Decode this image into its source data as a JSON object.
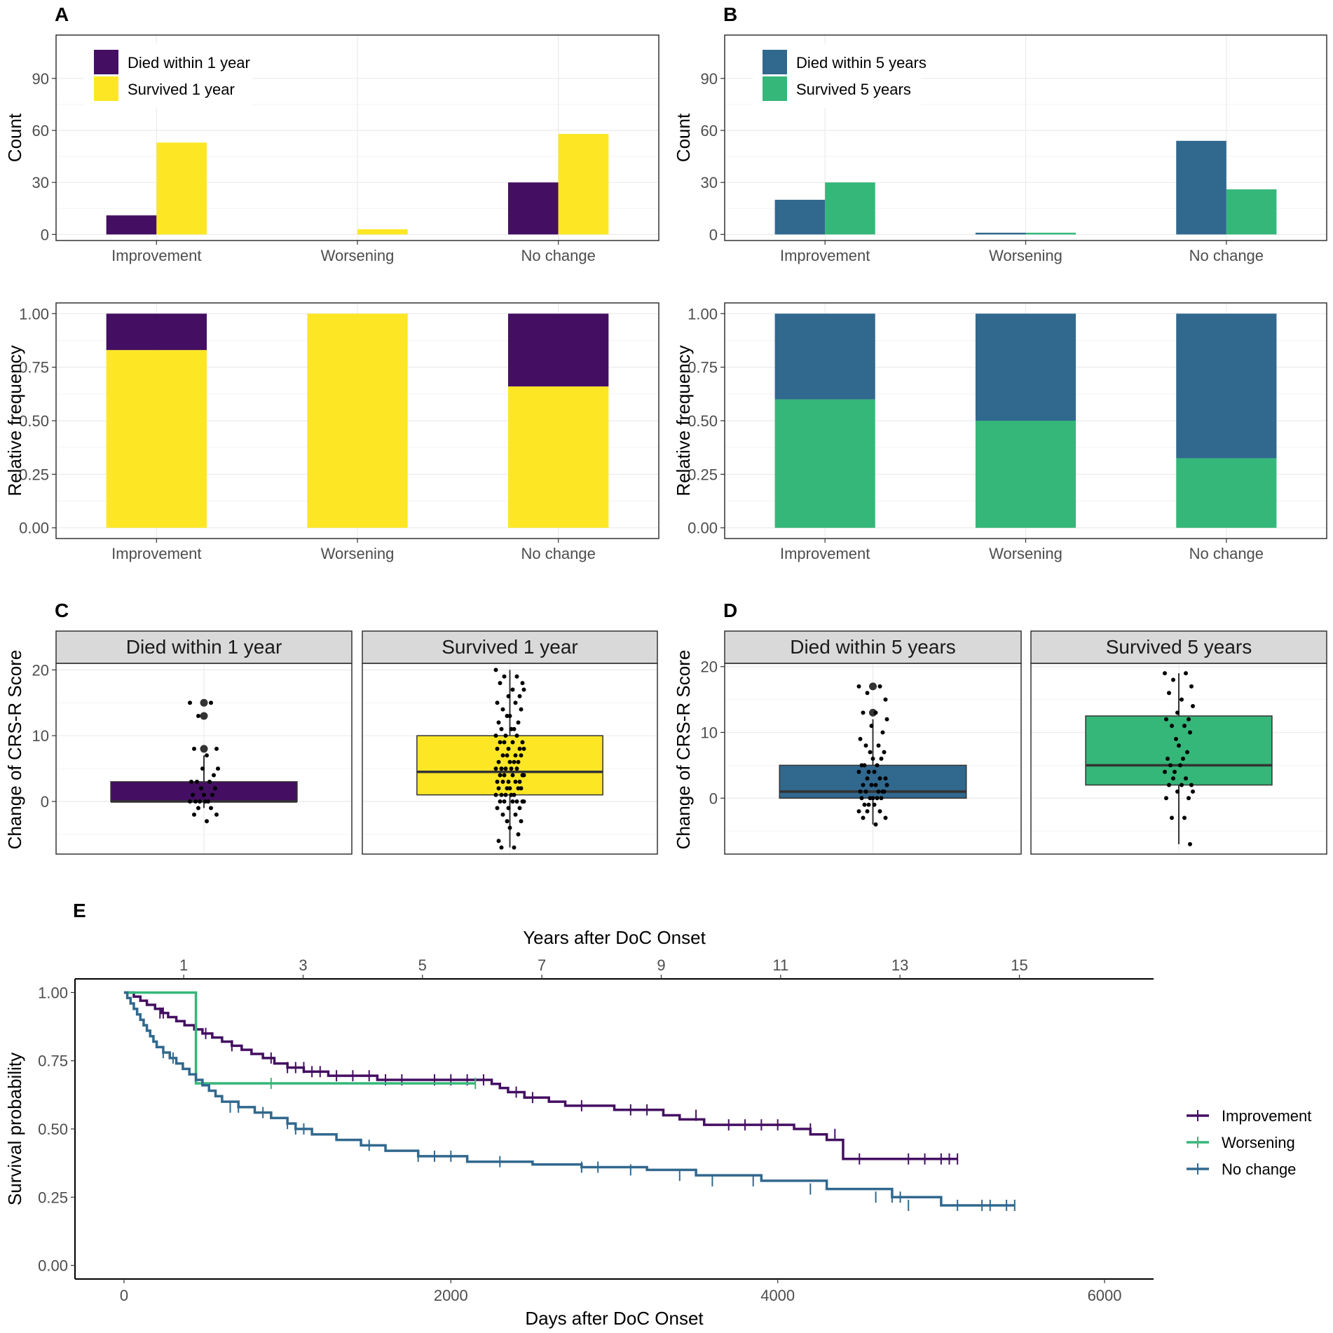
{
  "colors": {
    "died_1y": "#440f62",
    "survived_1y": "#fde725",
    "died_5y": "#31688e",
    "survived_5y": "#35b779",
    "improvement": "#440f62",
    "worsening": "#35b779",
    "no_change": "#31688e"
  },
  "labels": {
    "panel_a": "A",
    "panel_b": "B",
    "panel_c": "C",
    "panel_d": "D",
    "panel_e": "E"
  },
  "chart_data": [
    {
      "id": "A-count",
      "type": "bar",
      "categories": [
        "Improvement",
        "Worsening",
        "No change"
      ],
      "series": [
        {
          "name": "Died within 1 year",
          "color_key": "died_1y",
          "values": [
            11,
            0,
            30
          ]
        },
        {
          "name": "Survived 1 year",
          "color_key": "survived_1y",
          "values": [
            53,
            3,
            58
          ]
        }
      ],
      "ylabel": "Count",
      "ylim": [
        -3.5,
        115
      ],
      "yticks": [
        0,
        30,
        60,
        90
      ],
      "legend": "top-left"
    },
    {
      "id": "A-rel",
      "type": "bar",
      "stacked": true,
      "categories": [
        "Improvement",
        "Worsening",
        "No change"
      ],
      "series": [
        {
          "name": "Survived 1 year",
          "color_key": "survived_1y",
          "values": [
            0.83,
            1.0,
            0.66
          ]
        },
        {
          "name": "Died within 1 year",
          "color_key": "died_1y",
          "values": [
            0.17,
            0.0,
            0.34
          ]
        }
      ],
      "ylabel": "Relative frequency",
      "ylim": [
        -0.05,
        1.05
      ],
      "yticks": [
        "0.00",
        "0.25",
        "0.50",
        "0.75",
        "1.00"
      ]
    },
    {
      "id": "B-count",
      "type": "bar",
      "categories": [
        "Improvement",
        "Worsening",
        "No change"
      ],
      "series": [
        {
          "name": "Died within 5 years",
          "color_key": "died_5y",
          "values": [
            20,
            1,
            54
          ]
        },
        {
          "name": "Survived 5 years",
          "color_key": "survived_5y",
          "values": [
            30,
            1,
            26
          ]
        }
      ],
      "ylabel": "Count",
      "ylim": [
        -3.5,
        115
      ],
      "yticks": [
        0,
        30,
        60,
        90
      ],
      "legend": "top-left"
    },
    {
      "id": "B-rel",
      "type": "bar",
      "stacked": true,
      "categories": [
        "Improvement",
        "Worsening",
        "No change"
      ],
      "series": [
        {
          "name": "Survived 5 years",
          "color_key": "survived_5y",
          "values": [
            0.6,
            0.5,
            0.325
          ]
        },
        {
          "name": "Died within 5 years",
          "color_key": "died_5y",
          "values": [
            0.4,
            0.5,
            0.675
          ]
        }
      ],
      "ylabel": "Relative frequency",
      "ylim": [
        -0.05,
        1.05
      ],
      "yticks": [
        "0.00",
        "0.25",
        "0.50",
        "0.75",
        "1.00"
      ]
    },
    {
      "id": "C",
      "type": "box",
      "ylabel": "Change of CRS-R Score",
      "ylim": [
        -8,
        21
      ],
      "yticks": [
        0,
        10,
        20
      ],
      "facets": [
        {
          "name": "Died within 1 year",
          "color_key": "died_1y",
          "q1": 0,
          "median": 0,
          "q3": 3,
          "whisker_low": -1,
          "whisker_high": 7,
          "outliers": [
            8,
            13,
            15
          ],
          "points": [
            15,
            15,
            13,
            8,
            8,
            7,
            5,
            5,
            4,
            3,
            3,
            3,
            2,
            2,
            1,
            1,
            1,
            0,
            0,
            0,
            0,
            0,
            -1,
            -1,
            -2,
            -2,
            -3
          ]
        },
        {
          "name": "Survived 1 year",
          "color_key": "survived_1y",
          "q1": 1,
          "median": 4.5,
          "q3": 10,
          "whisker_low": -7,
          "whisker_high": 20,
          "outliers": [],
          "points": [
            20,
            19,
            19,
            18,
            18,
            17,
            17,
            16,
            16,
            15,
            15,
            14,
            14,
            13,
            13,
            12,
            12,
            11,
            11,
            11,
            10,
            10,
            10,
            9,
            9,
            9,
            9,
            8,
            8,
            8,
            8,
            7,
            7,
            7,
            7,
            6,
            6,
            6,
            6,
            5,
            5,
            5,
            5,
            5,
            4,
            4,
            4,
            4,
            4,
            3,
            3,
            3,
            3,
            3,
            2,
            2,
            2,
            2,
            2,
            1,
            1,
            1,
            1,
            1,
            0,
            0,
            0,
            0,
            0,
            0,
            -1,
            -1,
            -1,
            -2,
            -2,
            -3,
            -3,
            -4,
            -5,
            -6,
            -7,
            -7
          ]
        }
      ]
    },
    {
      "id": "D",
      "type": "box",
      "ylabel": "Change of CRS-R Score",
      "ylim": [
        -8.5,
        20.5
      ],
      "yticks": [
        0,
        10,
        20
      ],
      "facets": [
        {
          "name": "Died within 5 years",
          "color_key": "died_5y",
          "q1": 0,
          "median": 1,
          "q3": 5,
          "whisker_low": -4,
          "whisker_high": 12,
          "outliers": [
            13,
            17
          ],
          "points": [
            17,
            17,
            16,
            15,
            13,
            13,
            12,
            11,
            10,
            9,
            8,
            8,
            7,
            7,
            6,
            6,
            5,
            5,
            5,
            4,
            4,
            4,
            3,
            3,
            3,
            2,
            2,
            2,
            2,
            1,
            1,
            1,
            1,
            1,
            0,
            0,
            0,
            0,
            0,
            -1,
            -1,
            -1,
            -2,
            -2,
            -2,
            -3,
            -3,
            -4
          ]
        },
        {
          "name": "Survived 5 years",
          "color_key": "survived_5y",
          "q1": 2,
          "median": 5,
          "q3": 12.5,
          "whisker_low": -7,
          "whisker_high": 19,
          "outliers": [],
          "points": [
            19,
            19,
            18,
            17,
            16,
            15,
            14,
            13,
            12,
            12,
            11,
            11,
            10,
            9,
            8,
            7,
            6,
            6,
            5,
            5,
            4,
            4,
            3,
            3,
            2,
            2,
            2,
            1,
            1,
            0,
            0,
            -3,
            -3,
            -7
          ]
        }
      ]
    },
    {
      "id": "E",
      "type": "line",
      "subtype": "kaplan-meier",
      "xlabel": "Days after DoC Onset",
      "ylabel": "Survival probability",
      "x2label": "Years after DoC Onset",
      "xlim": [
        -300,
        6300
      ],
      "ylim": [
        -0.05,
        1.05
      ],
      "xticks": [
        0,
        2000,
        4000,
        6000
      ],
      "x2ticks": [
        1,
        3,
        5,
        7,
        9,
        11,
        13,
        15
      ],
      "yticks": [
        "0.00",
        "0.25",
        "0.50",
        "0.75",
        "1.00"
      ],
      "legend": "right",
      "series": [
        {
          "name": "Improvement",
          "color_key": "improvement",
          "steps": [
            [
              0,
              1.0
            ],
            [
              60,
              0.985
            ],
            [
              100,
              0.97
            ],
            [
              140,
              0.955
            ],
            [
              190,
              0.94
            ],
            [
              230,
              0.925
            ],
            [
              270,
              0.91
            ],
            [
              320,
              0.895
            ],
            [
              370,
              0.88
            ],
            [
              430,
              0.865
            ],
            [
              480,
              0.85
            ],
            [
              540,
              0.835
            ],
            [
              600,
              0.82
            ],
            [
              660,
              0.805
            ],
            [
              720,
              0.79
            ],
            [
              780,
              0.775
            ],
            [
              850,
              0.76
            ],
            [
              920,
              0.74
            ],
            [
              1000,
              0.725
            ],
            [
              1100,
              0.71
            ],
            [
              1250,
              0.695
            ],
            [
              1550,
              0.68
            ],
            [
              2000,
              0.68
            ],
            [
              2250,
              0.665
            ],
            [
              2300,
              0.65
            ],
            [
              2350,
              0.635
            ],
            [
              2450,
              0.615
            ],
            [
              2600,
              0.6
            ],
            [
              2700,
              0.585
            ],
            [
              3000,
              0.57
            ],
            [
              3300,
              0.55
            ],
            [
              3400,
              0.535
            ],
            [
              3550,
              0.515
            ],
            [
              4100,
              0.5
            ],
            [
              4200,
              0.48
            ],
            [
              4300,
              0.46
            ],
            [
              4400,
              0.39
            ],
            [
              5100,
              0.39
            ]
          ],
          "censored": [
            [
              220,
              0.925
            ],
            [
              240,
              0.925
            ],
            [
              500,
              0.85
            ],
            [
              660,
              0.805
            ],
            [
              900,
              0.76
            ],
            [
              1000,
              0.725
            ],
            [
              1050,
              0.725
            ],
            [
              1100,
              0.725
            ],
            [
              1150,
              0.71
            ],
            [
              1200,
              0.71
            ],
            [
              1300,
              0.695
            ],
            [
              1400,
              0.695
            ],
            [
              1500,
              0.695
            ],
            [
              1600,
              0.68
            ],
            [
              1700,
              0.68
            ],
            [
              1900,
              0.68
            ],
            [
              2000,
              0.68
            ],
            [
              2100,
              0.68
            ],
            [
              2200,
              0.68
            ],
            [
              2400,
              0.635
            ],
            [
              2500,
              0.615
            ],
            [
              2800,
              0.585
            ],
            [
              3100,
              0.57
            ],
            [
              3200,
              0.57
            ],
            [
              3500,
              0.55
            ],
            [
              3700,
              0.515
            ],
            [
              3800,
              0.515
            ],
            [
              3900,
              0.515
            ],
            [
              4000,
              0.515
            ],
            [
              4200,
              0.5
            ],
            [
              4350,
              0.48
            ],
            [
              4500,
              0.39
            ],
            [
              4800,
              0.39
            ],
            [
              4900,
              0.39
            ],
            [
              5000,
              0.39
            ],
            [
              5050,
              0.39
            ],
            [
              5100,
              0.39
            ]
          ]
        },
        {
          "name": "Worsening",
          "color_key": "worsening",
          "steps": [
            [
              0,
              1.0
            ],
            [
              440,
              1.0
            ],
            [
              440,
              0.667
            ],
            [
              2150,
              0.667
            ]
          ],
          "censored": [
            [
              900,
              0.667
            ],
            [
              2150,
              0.667
            ]
          ]
        },
        {
          "name": "No change",
          "color_key": "no_change",
          "steps": [
            [
              0,
              1.0
            ],
            [
              20,
              0.98
            ],
            [
              40,
              0.96
            ],
            [
              60,
              0.94
            ],
            [
              80,
              0.92
            ],
            [
              100,
              0.9
            ],
            [
              120,
              0.88
            ],
            [
              140,
              0.86
            ],
            [
              160,
              0.84
            ],
            [
              180,
              0.82
            ],
            [
              200,
              0.8
            ],
            [
              240,
              0.78
            ],
            [
              280,
              0.76
            ],
            [
              320,
              0.74
            ],
            [
              360,
              0.72
            ],
            [
              400,
              0.7
            ],
            [
              440,
              0.68
            ],
            [
              480,
              0.66
            ],
            [
              520,
              0.64
            ],
            [
              560,
              0.62
            ],
            [
              600,
              0.6
            ],
            [
              700,
              0.58
            ],
            [
              800,
              0.56
            ],
            [
              900,
              0.54
            ],
            [
              1000,
              0.52
            ],
            [
              1050,
              0.5
            ],
            [
              1150,
              0.48
            ],
            [
              1300,
              0.46
            ],
            [
              1450,
              0.44
            ],
            [
              1600,
              0.42
            ],
            [
              1800,
              0.4
            ],
            [
              2100,
              0.38
            ],
            [
              2500,
              0.37
            ],
            [
              2800,
              0.36
            ],
            [
              3200,
              0.35
            ],
            [
              3500,
              0.33
            ],
            [
              3900,
              0.31
            ],
            [
              4300,
              0.28
            ],
            [
              4700,
              0.25
            ],
            [
              5000,
              0.22
            ],
            [
              5450,
              0.22
            ]
          ],
          "censored": [
            [
              240,
              0.78
            ],
            [
              300,
              0.76
            ],
            [
              650,
              0.58
            ],
            [
              700,
              0.58
            ],
            [
              850,
              0.56
            ],
            [
              1000,
              0.52
            ],
            [
              1050,
              0.5
            ],
            [
              1100,
              0.5
            ],
            [
              1500,
              0.44
            ],
            [
              1800,
              0.4
            ],
            [
              1900,
              0.4
            ],
            [
              2000,
              0.4
            ],
            [
              2300,
              0.38
            ],
            [
              2800,
              0.36
            ],
            [
              2900,
              0.36
            ],
            [
              3100,
              0.35
            ],
            [
              3400,
              0.33
            ],
            [
              3600,
              0.31
            ],
            [
              3850,
              0.31
            ],
            [
              4200,
              0.28
            ],
            [
              4600,
              0.25
            ],
            [
              4700,
              0.25
            ],
            [
              4750,
              0.25
            ],
            [
              4800,
              0.22
            ],
            [
              5100,
              0.22
            ],
            [
              5250,
              0.22
            ],
            [
              5300,
              0.22
            ],
            [
              5400,
              0.22
            ],
            [
              5450,
              0.22
            ]
          ]
        }
      ]
    }
  ]
}
